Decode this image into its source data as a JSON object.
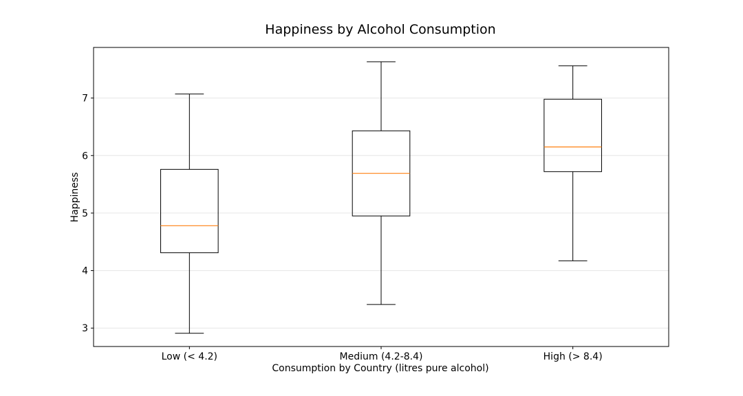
{
  "chart_data": {
    "type": "boxplot",
    "title": "Happiness by Alcohol Consumption",
    "xlabel": "Consumption by Country (litres pure alcohol)",
    "ylabel": "Happiness",
    "ylim": [
      2.68,
      7.88
    ],
    "yticks": [
      3,
      4,
      5,
      6,
      7
    ],
    "grid": "horizontal",
    "legend": "none",
    "categories": [
      "Low (< 4.2)",
      "Medium (4.2-8.4)",
      "High (> 8.4)"
    ],
    "boxes": [
      {
        "whisker_low": 2.91,
        "q1": 4.31,
        "median": 4.78,
        "q3": 5.76,
        "whisker_high": 7.07
      },
      {
        "whisker_low": 3.41,
        "q1": 4.95,
        "median": 5.69,
        "q3": 6.43,
        "whisker_high": 7.63
      },
      {
        "whisker_low": 4.17,
        "q1": 5.72,
        "median": 6.15,
        "q3": 6.98,
        "whisker_high": 7.56
      }
    ],
    "colors": {
      "box": "#000000",
      "median": "#ff7f0e",
      "grid": "#e6e6e6",
      "frame": "#000000"
    }
  }
}
